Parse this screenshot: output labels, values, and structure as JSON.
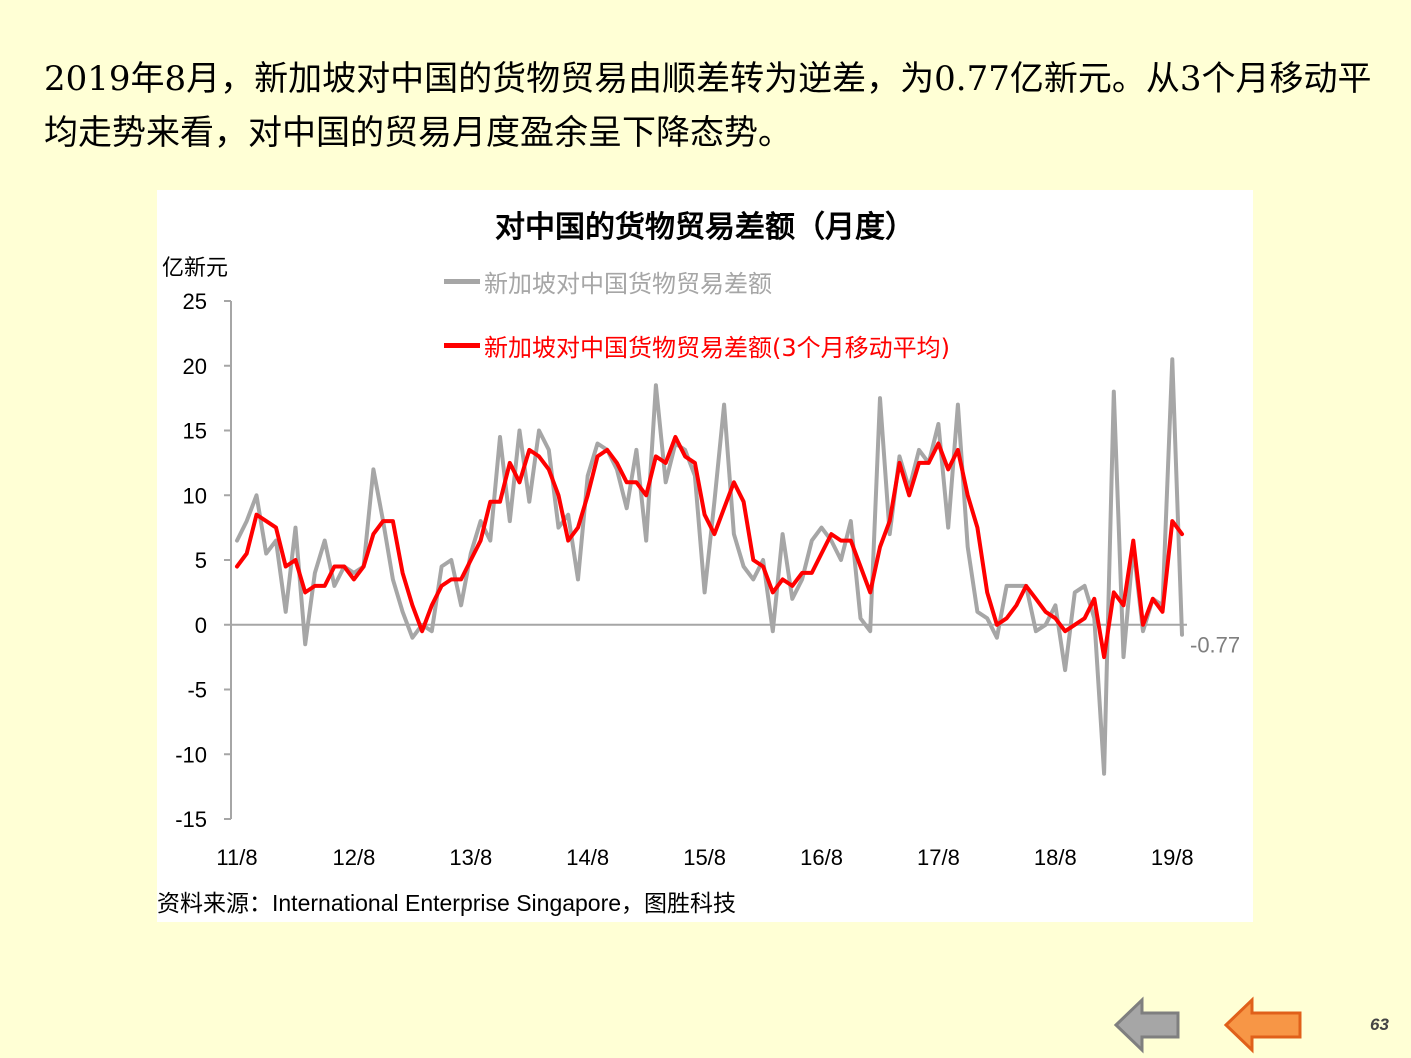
{
  "slide": {
    "headline": "2019年8月，新加坡对中国的货物贸易由顺差转为逆差，为0.77亿新元。从3个月移动平均走势来看，对中国的贸易月度盈余呈下降态势。",
    "page_number": "63",
    "source_note": "资料来源：International  Enterprise  Singapore，图胜科技"
  },
  "navigation": {
    "back_icon": "left-arrow-icon",
    "forward_icon": "left-arrow-icon"
  },
  "chart_data": {
    "type": "line",
    "title": "对中国的货物贸易差额（月度）",
    "ylabel": "亿新元",
    "xlabel": "",
    "ylim": [
      -15,
      25
    ],
    "yticks": [
      25,
      20,
      15,
      10,
      5,
      0,
      -5,
      -10,
      -15
    ],
    "ytick_labels": [
      "25",
      "20",
      "15",
      "10",
      "5",
      "0",
      "-5",
      "-10",
      "-15"
    ],
    "x_start": "2011-08",
    "x_end": "2019-08",
    "xtick_labels": [
      "11/8",
      "12/8",
      "13/8",
      "14/8",
      "15/8",
      "16/8",
      "17/8",
      "18/8",
      "19/8"
    ],
    "grid": false,
    "legend_position": "top",
    "last_value_label": "-0.77",
    "series": [
      {
        "name": "新加坡对中国货物贸易差额",
        "color": "#A6A6A6",
        "values": [
          6.5,
          8.0,
          10.0,
          5.5,
          6.5,
          1.0,
          7.5,
          -1.5,
          4.0,
          6.5,
          3.0,
          4.5,
          4.0,
          4.5,
          12.0,
          8.0,
          3.5,
          1.0,
          -1.0,
          0.0,
          -0.5,
          4.5,
          5.0,
          1.5,
          5.5,
          8.0,
          6.5,
          14.5,
          8.0,
          15.0,
          9.5,
          15.0,
          13.5,
          7.5,
          8.5,
          3.5,
          11.5,
          14.0,
          13.5,
          12.0,
          9.0,
          13.5,
          6.5,
          18.5,
          11.0,
          14.0,
          13.5,
          11.5,
          2.5,
          9.5,
          17.0,
          7.0,
          4.5,
          3.5,
          5.0,
          -0.5,
          7.0,
          2.0,
          3.5,
          6.5,
          7.5,
          6.5,
          5.0,
          8.0,
          0.5,
          -0.5,
          17.5,
          7.0,
          13.0,
          10.5,
          13.5,
          12.5,
          15.5,
          7.5,
          17.0,
          6.0,
          1.0,
          0.5,
          -1.0,
          3.0,
          3.0,
          3.0,
          -0.5,
          0.0,
          1.5,
          -3.5,
          2.5,
          3.0,
          0.5,
          -11.5,
          18.0,
          -2.5,
          6.0,
          -0.5,
          2.0,
          1.5,
          20.5,
          -0.77
        ]
      },
      {
        "name": "新加坡对中国货物贸易差额(3个月移动平均)",
        "color": "#FF0000",
        "values": [
          4.5,
          5.5,
          8.5,
          8.0,
          7.5,
          4.5,
          5.0,
          2.5,
          3.0,
          3.0,
          4.5,
          4.5,
          3.5,
          4.5,
          7.0,
          8.0,
          8.0,
          4.0,
          1.5,
          -0.5,
          1.5,
          3.0,
          3.5,
          3.5,
          5.0,
          6.5,
          9.5,
          9.5,
          12.5,
          11.0,
          13.5,
          13.0,
          12.0,
          10.0,
          6.5,
          7.5,
          10.0,
          13.0,
          13.5,
          12.5,
          11.0,
          11.0,
          10.0,
          13.0,
          12.5,
          14.5,
          13.0,
          12.5,
          8.5,
          7.0,
          9.0,
          11.0,
          9.5,
          5.0,
          4.5,
          2.5,
          3.5,
          3.0,
          4.0,
          4.0,
          5.5,
          7.0,
          6.5,
          6.5,
          4.5,
          2.5,
          6.0,
          8.0,
          12.5,
          10.0,
          12.5,
          12.5,
          14.0,
          12.0,
          13.5,
          10.0,
          7.5,
          2.5,
          0.0,
          0.5,
          1.5,
          3.0,
          2.0,
          1.0,
          0.5,
          -0.5,
          0.0,
          0.5,
          2.0,
          -2.5,
          2.5,
          1.5,
          6.5,
          0.0,
          2.0,
          1.0,
          8.0,
          7.0
        ]
      }
    ]
  }
}
